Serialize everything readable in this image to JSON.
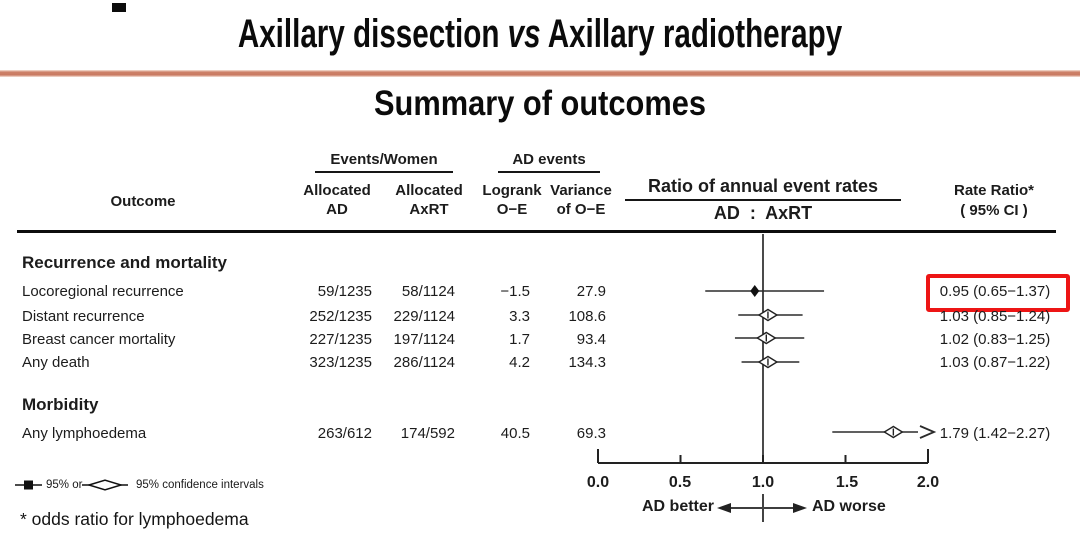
{
  "slide": {
    "title_part1": "Axillary dissection ",
    "title_vs": "vs",
    "title_part2": " Axillary radiotherapy",
    "subtitle": "Summary of outcomes",
    "accent_line_color": "#c97a62",
    "highlight_color": "#ed1515"
  },
  "table": {
    "header": {
      "outcome": "Outcome",
      "events_women": "Events/Women",
      "allocated_ad_line1": "Allocated",
      "allocated_ad_line2": "AD",
      "allocated_axrt_line1": "Allocated",
      "allocated_axrt_line2": "AxRT",
      "ad_events": "AD events",
      "logrank_line1": "Logrank",
      "logrank_line2": "O−E",
      "variance_line1": "Variance",
      "variance_line2": "of O−E",
      "ratio_title": "Ratio of annual event rates",
      "ratio_subtitle": "AD  :  AxRT",
      "rate_ratio_line1": "Rate Ratio*",
      "rate_ratio_line2": "( 95% CI )"
    },
    "sections": [
      {
        "title": "Recurrence and mortality",
        "rows": [
          {
            "label": "Locoregional recurrence",
            "events_ad": "59/1235",
            "events_axrt": "58/1124",
            "logrank_oe": "−1.5",
            "variance_oe": "27.9",
            "rate_ratio": "0.95 (0.65−1.37)",
            "highlighted": true
          },
          {
            "label": "Distant recurrence",
            "events_ad": "252/1235",
            "events_axrt": "229/1124",
            "logrank_oe": "3.3",
            "variance_oe": "108.6",
            "rate_ratio": "1.03 (0.85−1.24)",
            "highlighted": false
          },
          {
            "label": "Breast cancer mortality",
            "events_ad": "227/1235",
            "events_axrt": "197/1124",
            "logrank_oe": "1.7",
            "variance_oe": "93.4",
            "rate_ratio": "1.02 (0.83−1.25)",
            "highlighted": false
          },
          {
            "label": "Any death",
            "events_ad": "323/1235",
            "events_axrt": "286/1124",
            "logrank_oe": "4.2",
            "variance_oe": "134.3",
            "rate_ratio": "1.03 (0.87−1.22)",
            "highlighted": false
          }
        ]
      },
      {
        "title": "Morbidity",
        "rows": [
          {
            "label": "Any lymphoedema",
            "events_ad": "263/612",
            "events_axrt": "174/592",
            "logrank_oe": "40.5",
            "variance_oe": "69.3",
            "rate_ratio": "1.79 (1.42−2.27)",
            "highlighted": false
          }
        ]
      }
    ]
  },
  "chart_data": {
    "type": "forest",
    "title": "Ratio of annual event rates",
    "subtitle": "AD : AxRT",
    "xlim": [
      0.0,
      2.0
    ],
    "reference_line": 1.0,
    "axis": {
      "ticks": [
        0.0,
        0.5,
        1.0,
        1.5,
        2.0
      ],
      "tick_labels": [
        "0.0",
        "0.5",
        "1.0",
        "1.5",
        "2.0"
      ],
      "left_label": "AD better",
      "right_label": "AD worse"
    },
    "points": [
      {
        "outcome": "Locoregional recurrence",
        "estimate": 0.95,
        "ci_low": 0.65,
        "ci_high": 1.37,
        "marker": "filled-diamond",
        "clipped_high": false
      },
      {
        "outcome": "Distant recurrence",
        "estimate": 1.03,
        "ci_low": 0.85,
        "ci_high": 1.24,
        "marker": "open-diamond",
        "clipped_high": false
      },
      {
        "outcome": "Breast cancer mortality",
        "estimate": 1.02,
        "ci_low": 0.83,
        "ci_high": 1.25,
        "marker": "open-diamond",
        "clipped_high": false
      },
      {
        "outcome": "Any death",
        "estimate": 1.03,
        "ci_low": 0.87,
        "ci_high": 1.22,
        "marker": "open-diamond",
        "clipped_high": false
      },
      {
        "outcome": "Any lymphoedema",
        "estimate": 1.79,
        "ci_low": 1.42,
        "ci_high": 2.27,
        "marker": "open-diamond",
        "clipped_high": true
      }
    ]
  },
  "legend": {
    "square_text": "95% or",
    "diamond_text": "95% confidence intervals"
  },
  "footnote": "* odds ratio for lymphoedema"
}
